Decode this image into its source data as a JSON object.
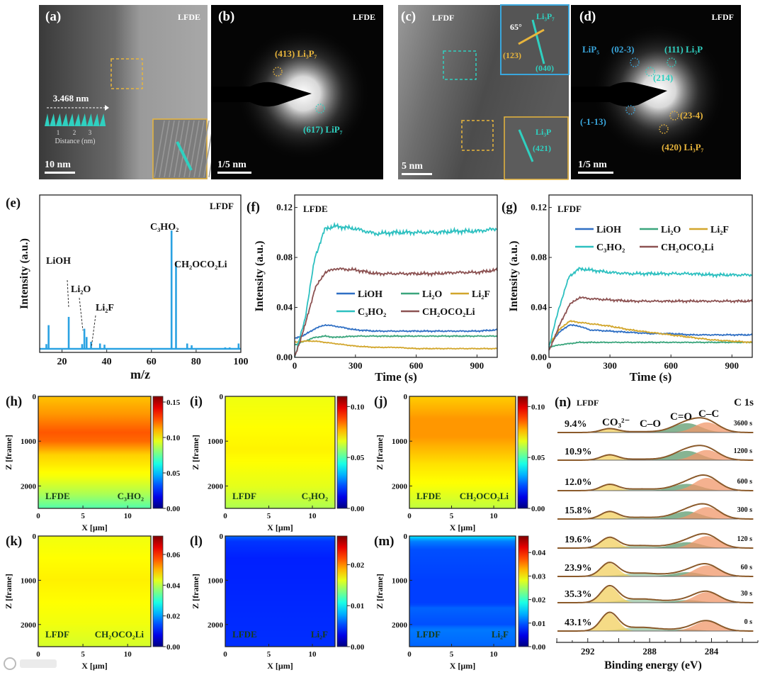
{
  "watermark": "大数跨境",
  "colors": {
    "LiOH": "#2f6fc4",
    "Li2O": "#3aa57c",
    "Li2F": "#d2a62c",
    "C3HO2": "#2dc0c0",
    "CH2OCO2Li": "#8c5252",
    "spectrum": "#2aa2e2",
    "tem_yellow": "#e8b53c",
    "tem_teal": "#2fd0c0",
    "tem_blue": "#3aa7dd",
    "xps_envelope": "#8b5a2b",
    "xps_co3": "#f2cf5e",
    "xps_co": "#9cc7a6",
    "xps_ceo": "#5e9b6e",
    "xps_cc": "#f0976a"
  },
  "tem": {
    "a": {
      "label": "(a)",
      "sample": "LFDE",
      "profile_length": "3.468 nm",
      "profile_ticks": [
        "1",
        "2",
        "3"
      ],
      "profile_xlabel": "Distance (nm)",
      "scale_bar": "10 nm"
    },
    "b": {
      "label": "(b)",
      "sample": "LFDE",
      "spot1": "(413)  Li₃P₇",
      "spot2": "(617)  LiP₇",
      "scale_bar": "1/5 nm"
    },
    "c": {
      "label": "(c)",
      "sample": "LFDF",
      "angle": "65°",
      "inset1_phase": "Li₃P₇",
      "inset1_plane_a": "(123)",
      "inset1_plane_b": "(040)",
      "inset2_phase": "Li₃P",
      "inset2_plane": "(421)",
      "scale_bar": "5 nm"
    },
    "d": {
      "label": "(d)",
      "sample": "LFDF",
      "s1": "LiP₅",
      "s2": "(02-3)",
      "s3": "(111)  Li₃P",
      "s4": "(214)",
      "s5": "(-1-13)",
      "s6": "(23-4)",
      "s7": "(420)  Li₃P₇",
      "scale_bar": "1/5 nm"
    }
  },
  "chart_data": [
    {
      "panel": "(e)",
      "type": "bar",
      "title": "LFDF",
      "xlabel": "m/z",
      "ylabel": "Intensity (a.u.)",
      "xlim": [
        10,
        100
      ],
      "ylim": [
        -0.03,
        1.3
      ],
      "xticks": [
        "20",
        "40",
        "60",
        "80",
        "100"
      ],
      "peaks": {
        "x": [
          13,
          14,
          23,
          29,
          30,
          31,
          33,
          37,
          39,
          69,
          71,
          76,
          78,
          93,
          95,
          99
        ],
        "values": [
          0.04,
          0.2,
          0.27,
          0.04,
          0.17,
          0.1,
          0.06,
          0.045,
          0.035,
          1.0,
          0.73,
          0.045,
          0.03,
          0.012,
          0.012,
          0.045
        ]
      },
      "annotations": [
        {
          "text": "LiOH",
          "x": 23
        },
        {
          "text": "Li₂O",
          "x": 30
        },
        {
          "text": "Li₂F",
          "x": 33
        },
        {
          "text": "C₃HO₂",
          "x": 69
        },
        {
          "text": "CH₂OCO₂Li",
          "x": 71
        }
      ]
    },
    {
      "panel": "(f)",
      "type": "line",
      "title": "LFDE",
      "xlabel": "Time (s)",
      "ylabel": "Intensity (a.u.)",
      "xlim": [
        0,
        1000
      ],
      "ylim": [
        0,
        0.13
      ],
      "xticks": [
        "0",
        "300",
        "600",
        "900"
      ],
      "yticks": [
        "0.00",
        "0.04",
        "0.08",
        "0.12"
      ],
      "x": [
        0,
        50,
        100,
        150,
        200,
        300,
        400,
        500,
        600,
        700,
        800,
        900,
        1000
      ],
      "series": [
        {
          "name": "LiOH",
          "key": "LiOH",
          "values": [
            0.015,
            0.018,
            0.023,
            0.026,
            0.025,
            0.022,
            0.021,
            0.021,
            0.021,
            0.021,
            0.021,
            0.021,
            0.022
          ]
        },
        {
          "name": "Li₂O",
          "key": "Li2O",
          "values": [
            0.01,
            0.013,
            0.016,
            0.017,
            0.016,
            0.017,
            0.017,
            0.017,
            0.017,
            0.017,
            0.017,
            0.017,
            0.017
          ]
        },
        {
          "name": "Li₂F",
          "key": "Li2F",
          "values": [
            0.012,
            0.013,
            0.013,
            0.012,
            0.011,
            0.009,
            0.008,
            0.008,
            0.007,
            0.007,
            0.007,
            0.007,
            0.007
          ]
        },
        {
          "name": "C₃HO₂",
          "key": "C3HO2",
          "values": [
            0.0,
            0.03,
            0.08,
            0.103,
            0.105,
            0.103,
            0.099,
            0.1,
            0.1,
            0.1,
            0.101,
            0.101,
            0.103
          ]
        },
        {
          "name": "CH₂OCO₂Li",
          "key": "CH2OCO2Li",
          "values": [
            0.0,
            0.025,
            0.055,
            0.068,
            0.071,
            0.07,
            0.067,
            0.067,
            0.067,
            0.067,
            0.068,
            0.068,
            0.07
          ]
        }
      ],
      "legend": "center-right"
    },
    {
      "panel": "(g)",
      "type": "line",
      "title": "LFDF",
      "xlabel": "Time (s)",
      "ylabel": "Intensity (a.u.)",
      "xlim": [
        0,
        1000
      ],
      "ylim": [
        0,
        0.13
      ],
      "xticks": [
        "0",
        "300",
        "600",
        "900"
      ],
      "yticks": [
        "0.00",
        "0.04",
        "0.08",
        "0.12"
      ],
      "x": [
        0,
        50,
        100,
        150,
        200,
        300,
        400,
        500,
        600,
        700,
        800,
        900,
        1000
      ],
      "series": [
        {
          "name": "LiOH",
          "key": "LiOH",
          "values": [
            0.01,
            0.02,
            0.026,
            0.025,
            0.022,
            0.021,
            0.02,
            0.019,
            0.019,
            0.018,
            0.018,
            0.018,
            0.018
          ]
        },
        {
          "name": "Li₂O",
          "key": "Li2O",
          "values": [
            0.008,
            0.01,
            0.011,
            0.012,
            0.012,
            0.012,
            0.012,
            0.012,
            0.012,
            0.012,
            0.012,
            0.012,
            0.012
          ]
        },
        {
          "name": "Li₂F",
          "key": "Li2F",
          "values": [
            0.01,
            0.022,
            0.029,
            0.028,
            0.027,
            0.025,
            0.022,
            0.02,
            0.018,
            0.016,
            0.014,
            0.013,
            0.012
          ]
        },
        {
          "name": "C₃HO₂",
          "key": "C3HO2",
          "values": [
            0.008,
            0.04,
            0.065,
            0.071,
            0.07,
            0.068,
            0.067,
            0.067,
            0.067,
            0.067,
            0.066,
            0.066,
            0.066
          ]
        },
        {
          "name": "CH₂OCO₂Li",
          "key": "CH2OCO2Li",
          "values": [
            0.005,
            0.025,
            0.042,
            0.048,
            0.047,
            0.046,
            0.045,
            0.045,
            0.045,
            0.045,
            0.045,
            0.045,
            0.045
          ]
        }
      ],
      "legend": "top-right"
    },
    {
      "panel": "(h)",
      "type": "heatmap",
      "sample": "LFDE",
      "species": "C₃HO₂",
      "xlabel": "X [µm]",
      "ylabel": "Z [frame]",
      "xlim": [
        0,
        12.6
      ],
      "ylim": [
        0,
        2500
      ],
      "xticks": [
        "0",
        "5",
        "10"
      ],
      "yticks": [
        "0",
        "1000",
        "2000"
      ],
      "clim": [
        0,
        0.158
      ],
      "cticks": [
        "0.00",
        "0.05",
        "0.10",
        "0.15"
      ],
      "profile": {
        "z": [
          0,
          400,
          800,
          1000,
          1300,
          1800,
          2200,
          2500
        ],
        "values": [
          0.108,
          0.115,
          0.125,
          0.122,
          0.106,
          0.097,
          0.085,
          0.072
        ]
      }
    },
    {
      "panel": "(i)",
      "type": "heatmap",
      "sample": "LFDF",
      "species": "C₃HO₂",
      "xlabel": "X [µm]",
      "ylabel": "Z [frame]",
      "xlim": [
        0,
        12.6
      ],
      "ylim": [
        0,
        2500
      ],
      "xticks": [
        "0",
        "5",
        "10"
      ],
      "yticks": [
        "0",
        "1000",
        "2000"
      ],
      "clim": [
        0,
        0.11
      ],
      "cticks": [
        "0.00",
        "0.05",
        "0.10"
      ],
      "profile": {
        "z": [
          0,
          800,
          1200,
          2000,
          2500
        ],
        "values": [
          0.067,
          0.069,
          0.07,
          0.066,
          0.06
        ]
      }
    },
    {
      "panel": "(j)",
      "type": "heatmap",
      "sample": "LFDE",
      "species": "CH₂OCO₂Li",
      "xlabel": "X [µm]",
      "ylabel": "Z [frame]",
      "xlim": [
        0,
        12.6
      ],
      "ylim": [
        0,
        2500
      ],
      "xticks": [
        "0",
        "5",
        "10"
      ],
      "yticks": [
        "0",
        "1000",
        "2000"
      ],
      "clim": [
        0,
        0.11
      ],
      "cticks": [
        "0.00",
        "0.05",
        "0.10"
      ],
      "profile": {
        "z": [
          0,
          500,
          900,
          1500,
          2000,
          2500
        ],
        "values": [
          0.074,
          0.08,
          0.08,
          0.072,
          0.068,
          0.062
        ]
      }
    },
    {
      "panel": "(k)",
      "type": "heatmap",
      "sample": "LFDF",
      "species": "CH₂OCO₂Li",
      "xlabel": "X [µm]",
      "ylabel": "Z [frame]",
      "xlim": [
        0,
        12.6
      ],
      "ylim": [
        0,
        2500
      ],
      "xticks": [
        "0",
        "5",
        "10"
      ],
      "yticks": [
        "0",
        "1000",
        "2000"
      ],
      "clim": [
        0,
        0.072
      ],
      "cticks": [
        "0.00",
        "0.02",
        "0.04",
        "0.06"
      ],
      "profile": {
        "z": [
          0,
          1000,
          2000,
          2500
        ],
        "values": [
          0.044,
          0.046,
          0.044,
          0.042
        ]
      }
    },
    {
      "panel": "(l)",
      "type": "heatmap",
      "sample": "LFDE",
      "species": "Li₂F",
      "xlabel": "X [µm]",
      "ylabel": "Z [frame]",
      "xlim": [
        0,
        12.6
      ],
      "ylim": [
        0,
        2500
      ],
      "xticks": [
        "0",
        "5",
        "10"
      ],
      "yticks": [
        "0",
        "1000",
        "2000"
      ],
      "clim": [
        0,
        0.027
      ],
      "cticks": [
        "0.00",
        "0.01",
        "0.02"
      ],
      "profile": {
        "z": [
          0,
          100,
          500,
          2500
        ],
        "values": [
          0.0062,
          0.0048,
          0.0042,
          0.0046
        ]
      }
    },
    {
      "panel": "(m)",
      "type": "heatmap",
      "sample": "LFDF",
      "species": "Li₂F",
      "xlabel": "X [µm]",
      "ylabel": "Z [frame]",
      "xlim": [
        0,
        12.6
      ],
      "ylim": [
        0,
        2500
      ],
      "xticks": [
        "0",
        "5",
        "10"
      ],
      "yticks": [
        "0",
        "1000",
        "2000"
      ],
      "clim": [
        0,
        0.047
      ],
      "cticks": [
        "0.00",
        "0.01",
        "0.02",
        "0.03",
        "0.04"
      ],
      "profile": {
        "z": [
          0,
          100,
          300,
          1000,
          1550,
          1600,
          2000,
          2100,
          2500
        ],
        "values": [
          0.017,
          0.012,
          0.0095,
          0.0088,
          0.0088,
          0.0105,
          0.0095,
          0.0115,
          0.0105
        ]
      }
    },
    {
      "panel": "(n)",
      "type": "line",
      "title": "LFDF",
      "subtitle": "C 1s",
      "xlabel": "Binding energy (eV)",
      "xlim": [
        294.05,
        281.0
      ],
      "xticks": [
        "292",
        "288",
        "284"
      ],
      "components": [
        {
          "label": "CO₃²⁻",
          "center": 290.6,
          "sigma": 0.55
        },
        {
          "label": "C–O",
          "center": 288.6,
          "sigma": 1.2
        },
        {
          "label": "C=O",
          "center": 285.6,
          "sigma": 0.9
        },
        {
          "label": "C–C",
          "center": 284.3,
          "sigma": 0.8
        }
      ],
      "rows": [
        {
          "time": "3600 s",
          "percent": "9.4%",
          "amplitudes": [
            0.22,
            0.05,
            0.55,
            0.6
          ]
        },
        {
          "time": "1200 s",
          "percent": "10.9%",
          "amplitudes": [
            0.3,
            0.06,
            0.55,
            0.6
          ]
        },
        {
          "time": "600 s",
          "percent": "12.0%",
          "amplitudes": [
            0.35,
            0.1,
            0.4,
            0.75
          ]
        },
        {
          "time": "300 s",
          "percent": "15.8%",
          "amplitudes": [
            0.42,
            0.1,
            0.45,
            0.7
          ]
        },
        {
          "time": "120 s",
          "percent": "19.6%",
          "amplitudes": [
            0.6,
            0.15,
            0.35,
            0.7
          ]
        },
        {
          "time": "60 s",
          "percent": "23.9%",
          "amplitudes": [
            0.78,
            0.2,
            0.25,
            0.65
          ]
        },
        {
          "time": "30 s",
          "percent": "35.3%",
          "amplitudes": [
            0.95,
            0.22,
            0.15,
            0.62
          ]
        },
        {
          "time": "0 s",
          "percent": "43.1%",
          "amplitudes": [
            1.05,
            0.22,
            0.1,
            0.58
          ]
        }
      ]
    }
  ]
}
